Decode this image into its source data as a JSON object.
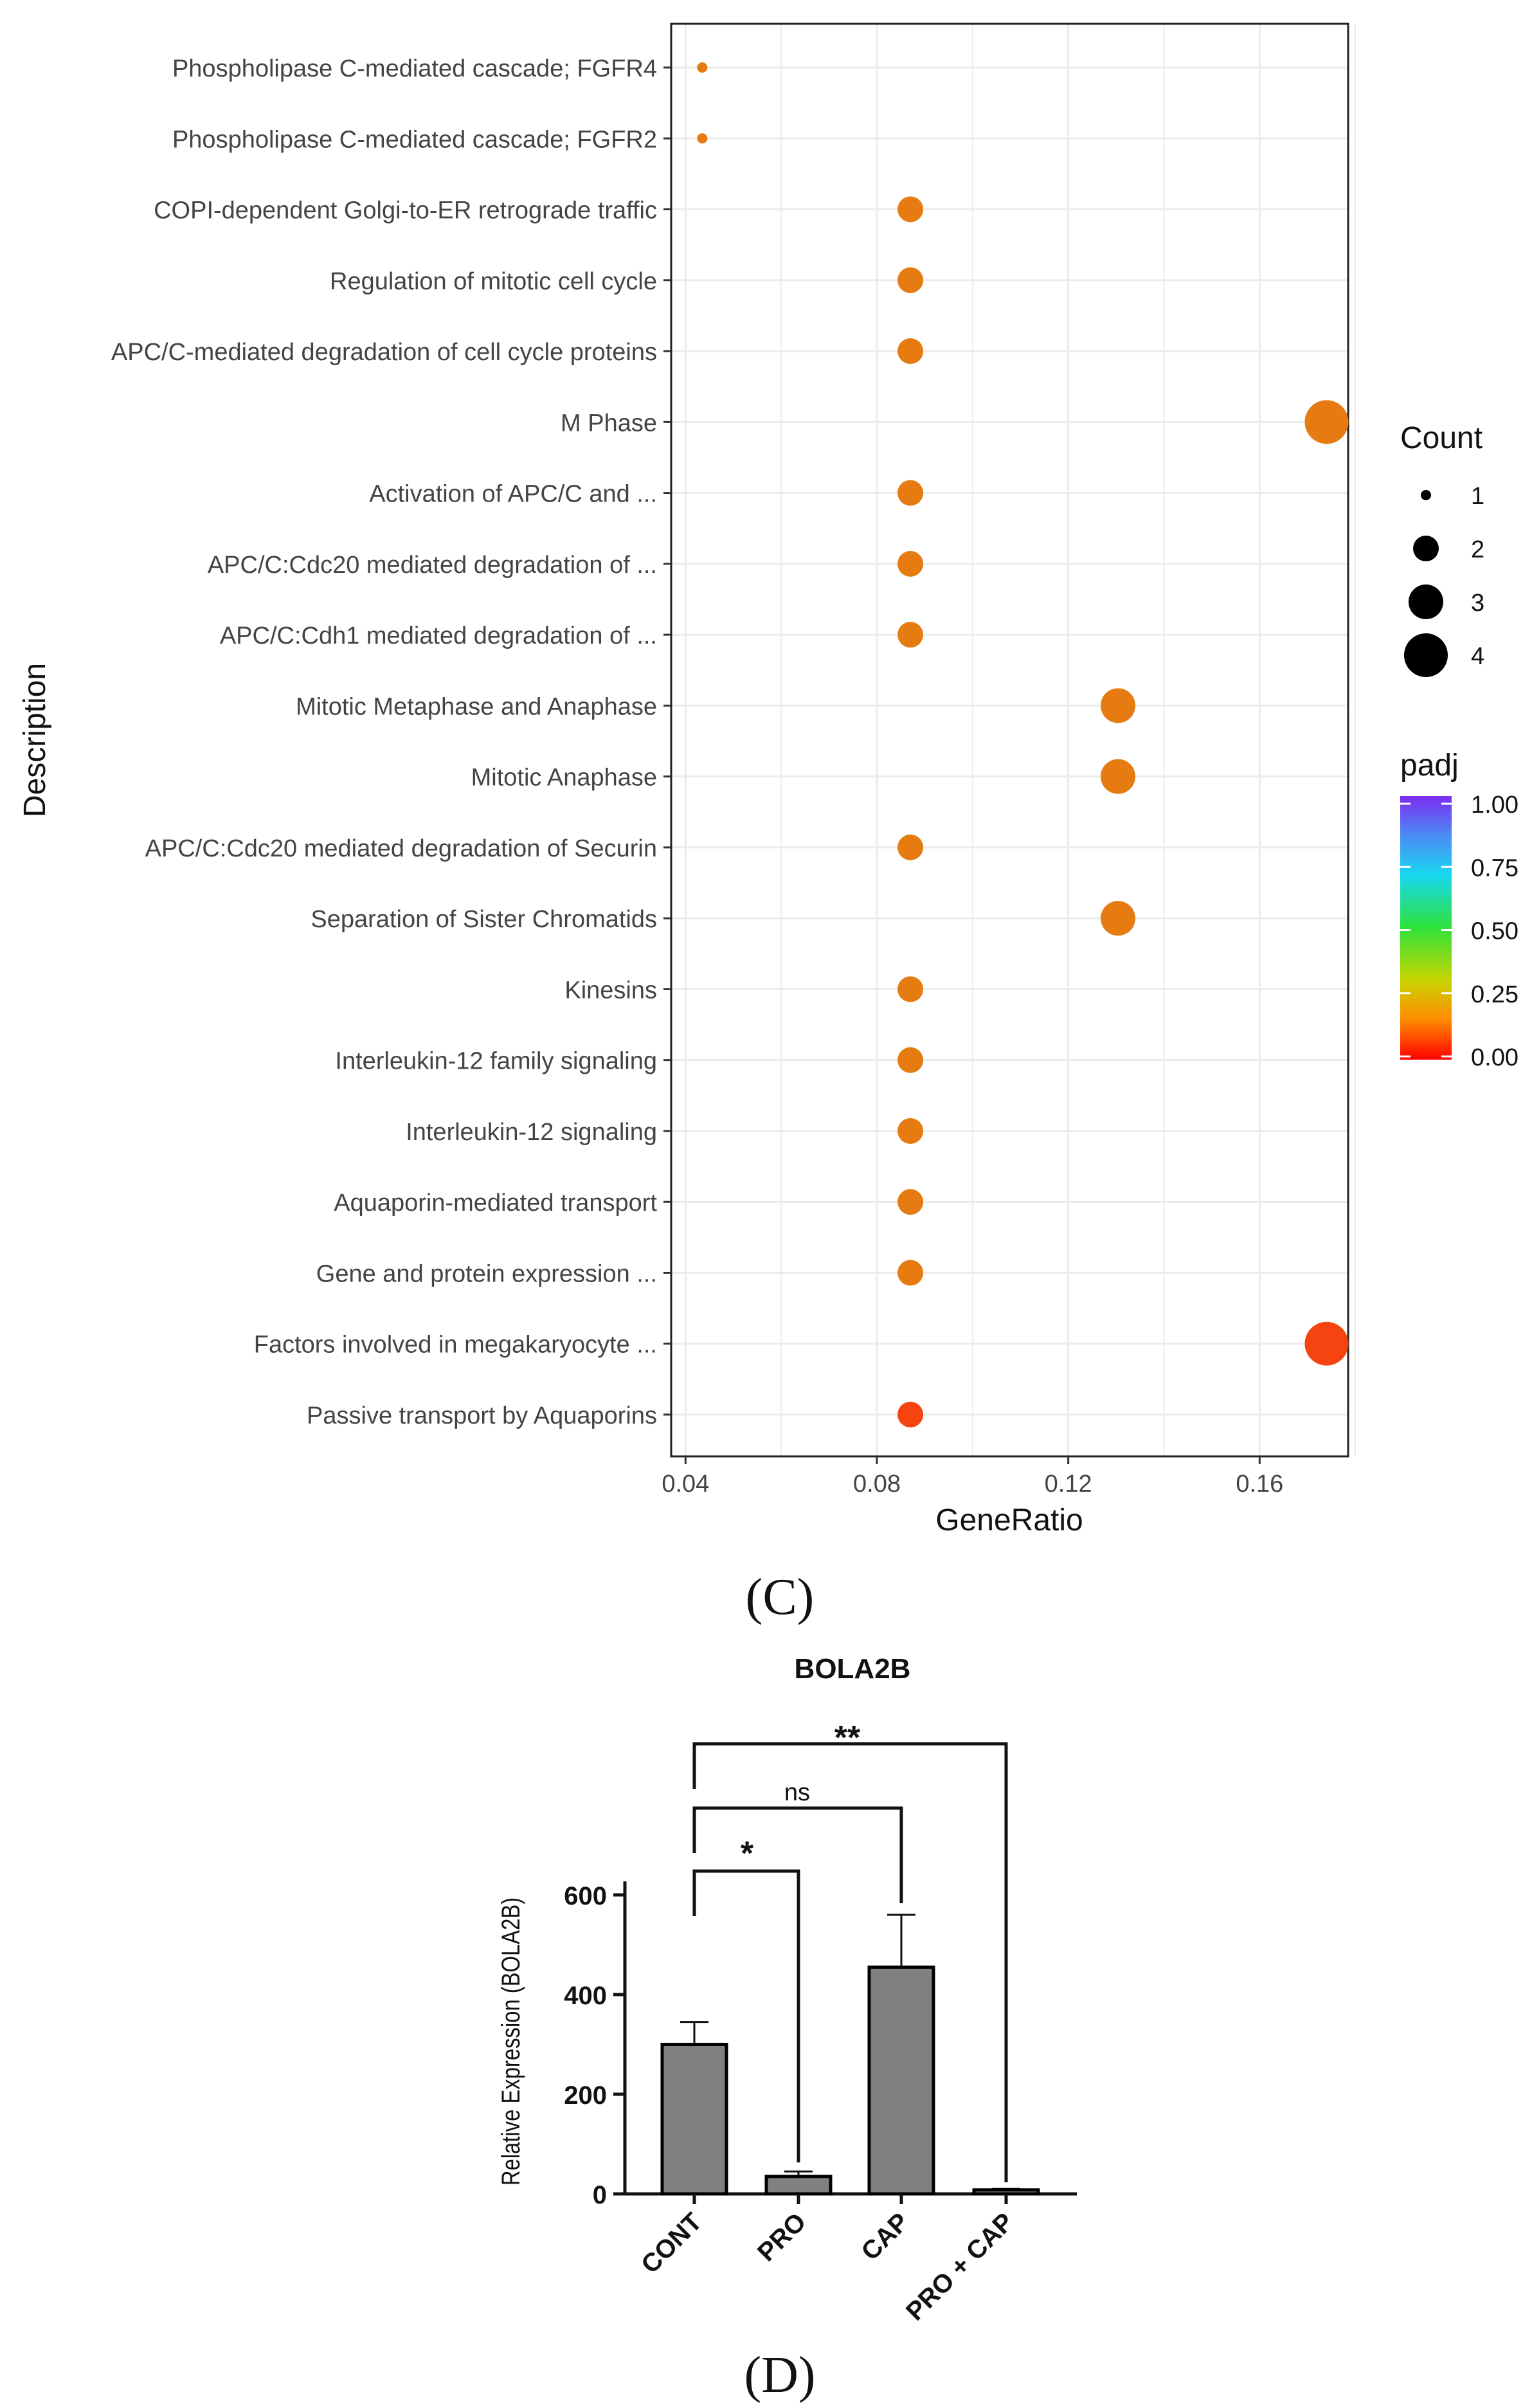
{
  "chart_data": [
    {
      "type": "scatter",
      "panel_label": "(C)",
      "xlabel": "GeneRatio",
      "ylabel": "Description",
      "xlim": [
        0.037,
        0.1785
      ],
      "xticks": [
        "0.04",
        "0.08",
        "0.12",
        "0.16"
      ],
      "xtick_values": [
        0.04,
        0.08,
        0.12,
        0.16
      ],
      "grid": true,
      "points": [
        {
          "description": "Phospholipase C-mediated cascade; FGFR4",
          "gene_ratio": 0.0435,
          "count": 1,
          "padj": 0.15
        },
        {
          "description": "Phospholipase C-mediated cascade; FGFR2",
          "gene_ratio": 0.0435,
          "count": 1,
          "padj": 0.15
        },
        {
          "description": "COPI-dependent Golgi-to-ER retrograde traffic",
          "gene_ratio": 0.087,
          "count": 2,
          "padj": 0.15
        },
        {
          "description": "Regulation of mitotic cell cycle",
          "gene_ratio": 0.087,
          "count": 2,
          "padj": 0.15
        },
        {
          "description": "APC/C-mediated degradation of cell cycle proteins",
          "gene_ratio": 0.087,
          "count": 2,
          "padj": 0.15
        },
        {
          "description": "M Phase",
          "gene_ratio": 0.174,
          "count": 4,
          "padj": 0.15
        },
        {
          "description": "Activation of APC/C and ...",
          "gene_ratio": 0.087,
          "count": 2,
          "padj": 0.15
        },
        {
          "description": "APC/C:Cdc20 mediated degradation of ...",
          "gene_ratio": 0.087,
          "count": 2,
          "padj": 0.15
        },
        {
          "description": "APC/C:Cdh1 mediated degradation of ...",
          "gene_ratio": 0.087,
          "count": 2,
          "padj": 0.15
        },
        {
          "description": "Mitotic Metaphase and Anaphase",
          "gene_ratio": 0.1304,
          "count": 3,
          "padj": 0.15
        },
        {
          "description": "Mitotic Anaphase",
          "gene_ratio": 0.1304,
          "count": 3,
          "padj": 0.15
        },
        {
          "description": "APC/C:Cdc20 mediated degradation of Securin",
          "gene_ratio": 0.087,
          "count": 2,
          "padj": 0.15
        },
        {
          "description": "Separation of Sister Chromatids",
          "gene_ratio": 0.1304,
          "count": 3,
          "padj": 0.15
        },
        {
          "description": "Kinesins",
          "gene_ratio": 0.087,
          "count": 2,
          "padj": 0.15
        },
        {
          "description": "Interleukin-12 family signaling",
          "gene_ratio": 0.087,
          "count": 2,
          "padj": 0.15
        },
        {
          "description": "Interleukin-12 signaling",
          "gene_ratio": 0.087,
          "count": 2,
          "padj": 0.15
        },
        {
          "description": "Aquaporin-mediated transport",
          "gene_ratio": 0.087,
          "count": 2,
          "padj": 0.15
        },
        {
          "description": "Gene and protein expression ...",
          "gene_ratio": 0.087,
          "count": 2,
          "padj": 0.15
        },
        {
          "description": "Factors involved in megakaryocyte ...",
          "gene_ratio": 0.174,
          "count": 4,
          "padj": 0.06
        },
        {
          "description": "Passive transport by Aquaporins",
          "gene_ratio": 0.087,
          "count": 2,
          "padj": 0.06
        }
      ],
      "legend_count": {
        "title": "Count",
        "entries": [
          "1",
          "2",
          "3",
          "4"
        ],
        "values": [
          1,
          2,
          3,
          4
        ]
      },
      "legend_padj": {
        "title": "padj",
        "ticks": [
          "1.00",
          "0.75",
          "0.50",
          "0.25",
          "0.00"
        ],
        "values": [
          1.0,
          0.75,
          0.5,
          0.25,
          0.0
        ]
      },
      "legend_placement": "right",
      "colors": {
        "high_padj": "#7b2cf0",
        "mid": "#d9b400",
        "low_padj": "#ff0000",
        "point_default": "#d4aa0c",
        "point_low": "#f15a14"
      }
    },
    {
      "type": "bar",
      "panel_label": "(D)",
      "title": "BOLA2B",
      "ylabel": "Relative Expression (BOLA2B)",
      "categories": [
        "CONT",
        "PRO",
        "CAP",
        "PRO + CAP"
      ],
      "values": [
        300,
        35,
        455,
        8
      ],
      "errors": [
        45,
        10,
        105,
        2
      ],
      "ylim": [
        0,
        640
      ],
      "yticks": [
        "0",
        "200",
        "400",
        "600"
      ],
      "ytick_values": [
        0,
        200,
        400,
        600
      ],
      "significance": [
        {
          "from": "CONT",
          "to": "PRO",
          "label": "*"
        },
        {
          "from": "CONT",
          "to": "CAP",
          "label": "ns"
        },
        {
          "from": "CONT",
          "to": "PRO + CAP",
          "label": "**"
        }
      ],
      "colors": {
        "bar": "#808080",
        "outline": "#000000"
      }
    }
  ]
}
